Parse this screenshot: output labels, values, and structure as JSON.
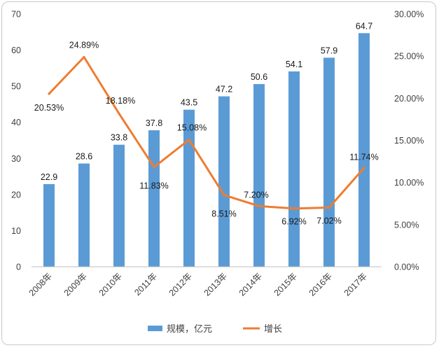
{
  "chart_data": {
    "type": "bar",
    "categories": [
      "2008年",
      "2009年",
      "2010年",
      "2011年",
      "2012年",
      "2013年",
      "2014年",
      "2015年",
      "2016年",
      "2017年"
    ],
    "series": [
      {
        "name": "规模，亿元",
        "type": "bar",
        "axis": "left",
        "color": "#5b9bd5",
        "values": [
          22.9,
          28.6,
          33.8,
          37.8,
          43.5,
          47.2,
          50.6,
          54.1,
          57.9,
          64.7
        ],
        "labels": [
          "22.9",
          "28.6",
          "33.8",
          "37.8",
          "43.5",
          "47.2",
          "50.6",
          "54.1",
          "57.9",
          "64.7"
        ]
      },
      {
        "name": "增长",
        "type": "line",
        "axis": "right",
        "color": "#ed7d31",
        "values": [
          20.53,
          24.89,
          18.18,
          11.83,
          15.08,
          8.51,
          7.2,
          6.92,
          7.02,
          11.74
        ],
        "labels": [
          "20.53%",
          "24.89%",
          "18.18%",
          "11.83%",
          "15.08%",
          "8.51%",
          "7.20%",
          "6.92%",
          "7.02%",
          "11.74%"
        ]
      }
    ],
    "y_left": {
      "range": [
        0,
        70
      ],
      "ticks": [
        "0",
        "10",
        "20",
        "30",
        "40",
        "50",
        "60",
        "70"
      ]
    },
    "y_right": {
      "range": [
        0,
        30
      ],
      "ticks": [
        "0.00%",
        "5.00%",
        "10.00%",
        "15.00%",
        "20.00%",
        "25.00%",
        "30.00%"
      ]
    },
    "title": "",
    "grid": false,
    "legend": "bottom"
  }
}
